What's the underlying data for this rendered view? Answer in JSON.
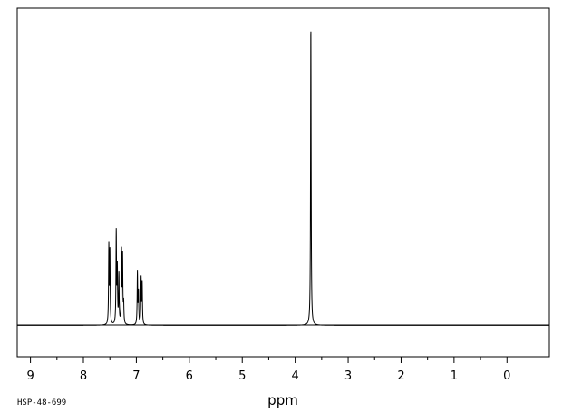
{
  "chart_data": {
    "type": "line",
    "xlabel": "ppm",
    "ylabel": "",
    "title": "",
    "spectrum_code": "HSP-48-699",
    "x_axis": {
      "reversed": true,
      "xlim": [
        9.25,
        -0.8
      ],
      "major_ticks": [
        9,
        8,
        7,
        6,
        5,
        4,
        3,
        2,
        1,
        0
      ],
      "tick_labels": [
        "9",
        "8",
        "7",
        "6",
        "5",
        "4",
        "3",
        "2",
        "1",
        "0"
      ],
      "minor_step": 0.5
    },
    "grid": false,
    "peaks": [
      {
        "x": 7.52,
        "y": 0.27
      },
      {
        "x": 7.5,
        "y": 0.25
      },
      {
        "x": 7.38,
        "y": 0.32
      },
      {
        "x": 7.36,
        "y": 0.19
      },
      {
        "x": 7.33,
        "y": 0.17
      },
      {
        "x": 7.28,
        "y": 0.25
      },
      {
        "x": 7.26,
        "y": 0.23
      },
      {
        "x": 7.24,
        "y": 0.07
      },
      {
        "x": 6.98,
        "y": 0.18
      },
      {
        "x": 6.96,
        "y": 0.11
      },
      {
        "x": 6.91,
        "y": 0.16
      },
      {
        "x": 6.89,
        "y": 0.14
      },
      {
        "x": 3.705,
        "y": 1.0
      },
      {
        "x": 3.7,
        "y": 0.08
      }
    ],
    "ylim": [
      -0.11,
      1.11
    ]
  }
}
